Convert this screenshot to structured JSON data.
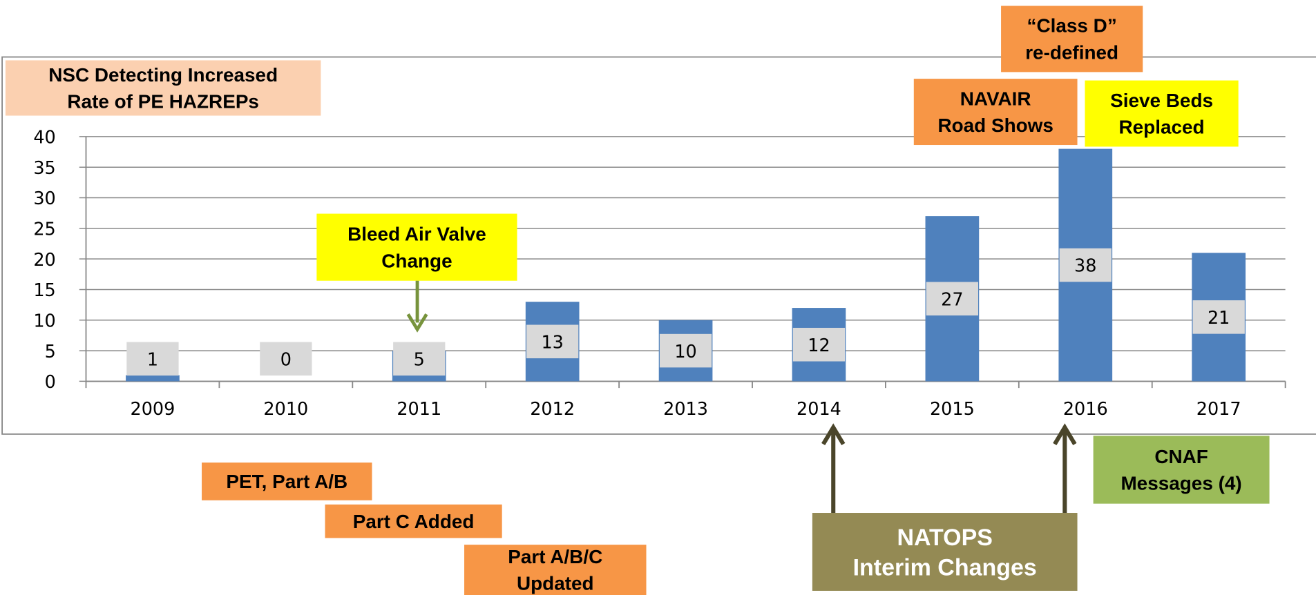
{
  "chart_data": {
    "type": "bar",
    "categories": [
      "2009",
      "2010",
      "2011",
      "2012",
      "2013",
      "2014",
      "2015",
      "2016",
      "2017"
    ],
    "values": [
      1,
      0,
      5,
      13,
      10,
      12,
      27,
      38,
      21
    ],
    "color": "#4f81bd",
    "ylim": [
      0,
      40
    ],
    "yticks": [
      0,
      5,
      10,
      15,
      20,
      25,
      30,
      35,
      40
    ],
    "grid": true,
    "annotations": [
      {
        "lines": [
          "NSC Detecting Increased",
          "Rate of PE HAZREPs"
        ]
      },
      {
        "lines": [
          "“Class D”",
          "re-defined"
        ]
      },
      {
        "lines": [
          "NAVAIR",
          "Road Shows"
        ]
      },
      {
        "lines": [
          "Sieve Beds",
          "Replaced"
        ]
      },
      {
        "lines": [
          "Bleed Air Valve",
          "Change"
        ]
      },
      {
        "lines": [
          "CNAF",
          "Messages (4)"
        ]
      },
      {
        "lines": [
          "PET, Part A/B"
        ]
      },
      {
        "lines": [
          "Part C Added"
        ]
      },
      {
        "lines": [
          "Part A/B/C",
          "Updated"
        ]
      },
      {
        "lines": [
          "NATOPS",
          "Interim Changes"
        ]
      }
    ]
  }
}
